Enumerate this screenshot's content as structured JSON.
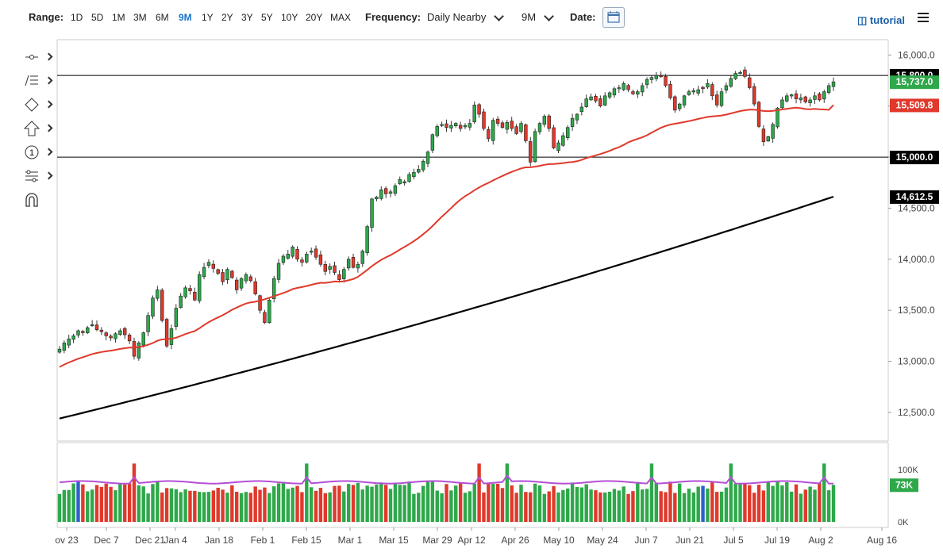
{
  "toolbar": {
    "range_label": "Range:",
    "ranges": [
      "1D",
      "5D",
      "1M",
      "3M",
      "6M",
      "9M",
      "1Y",
      "2Y",
      "3Y",
      "5Y",
      "10Y",
      "20Y",
      "MAX"
    ],
    "active_range": "9M",
    "frequency_label": "Frequency:",
    "frequency_value": "Daily Nearby",
    "period_value": "9M",
    "date_label": "Date:",
    "tutorial_label": "tutorial",
    "calendar_icon": "calendar-icon",
    "menu_icon": "hamburger-menu-icon"
  },
  "side_tools": [
    "line-tool-icon",
    "fib-tool-icon",
    "shape-tool-icon",
    "arrow-tool-icon",
    "number-tool-icon",
    "measure-tool-icon",
    "magnet-icon"
  ],
  "colors": {
    "up": "#2ea84a",
    "down": "#e0392b",
    "sma50": "#e0392b",
    "sma200": "#000000",
    "volume_avg": "#b44fd6",
    "volume_blue": "#2f5fd0"
  },
  "chart_data": {
    "type": "candlestick",
    "x_tick_labels": [
      "ov 23",
      "Dec 7",
      "Dec 21",
      "Jan 4",
      "Jan 18",
      "Feb 1",
      "Feb 15",
      "Mar 1",
      "Mar 15",
      "Mar 29",
      "Apr 12",
      "Apr 26",
      "May 10",
      "May 24",
      "Jun 7",
      "Jun 21",
      "Jul 5",
      "Jul 19",
      "Aug 2",
      "Aug 16"
    ],
    "y_tick_labels": [
      "16,000.0",
      "15,500.0",
      "15,000.0",
      "14,500.0",
      "14,000.0",
      "13,500.0",
      "13,000.0",
      "12,500.0"
    ],
    "y_ticks": [
      16000,
      15500,
      15000,
      14500,
      14000,
      13500,
      13000,
      12500
    ],
    "ylim": [
      12220,
      16150
    ],
    "horizontal_lines": [
      15800,
      15000
    ],
    "horizontal_line_labels": [
      "15,800.0",
      "15,000.0"
    ],
    "price_labels": {
      "last": "15,737.0",
      "sma50": "15,509.8",
      "sma200": "14,612.5"
    },
    "last_value": 15737,
    "sma50_value": 15509.8,
    "sma200_value": 14612.5,
    "close": [
      13120,
      13180,
      13220,
      13250,
      13300,
      13280,
      13330,
      13360,
      13310,
      13290,
      13250,
      13230,
      13270,
      13300,
      13260,
      13200,
      13050,
      13180,
      13280,
      13450,
      13620,
      13700,
      13400,
      13150,
      13320,
      13520,
      13640,
      13720,
      13690,
      13600,
      13850,
      13920,
      13970,
      13910,
      13860,
      13780,
      13900,
      13820,
      13700,
      13810,
      13850,
      13790,
      13660,
      13500,
      13380,
      13600,
      13810,
      13960,
      14030,
      14050,
      14120,
      14000,
      13970,
      14050,
      14080,
      14020,
      13950,
      13880,
      13930,
      13870,
      13800,
      13900,
      14000,
      13920,
      13950,
      14080,
      14320,
      14590,
      14610,
      14680,
      14640,
      14660,
      14720,
      14780,
      14760,
      14830,
      14850,
      14880,
      14960,
      15050,
      15220,
      15300,
      15320,
      15290,
      15310,
      15330,
      15280,
      15310,
      15330,
      15510,
      15420,
      15280,
      15180,
      15360,
      15330,
      15290,
      15340,
      15280,
      15230,
      15330,
      15160,
      14950,
      15250,
      15330,
      15400,
      15280,
      15090,
      15140,
      15210,
      15290,
      15380,
      15420,
      15490,
      15570,
      15590,
      15550,
      15500,
      15600,
      15630,
      15670,
      15680,
      15720,
      15660,
      15620,
      15640,
      15700,
      15760,
      15780,
      15800,
      15790,
      15700,
      15580,
      15460,
      15520,
      15600,
      15640,
      15650,
      15660,
      15670,
      15720,
      15600,
      15510,
      15640,
      15700,
      15770,
      15820,
      15830,
      15790,
      15680,
      15520,
      15300,
      15150,
      15200,
      15320,
      15480,
      15560,
      15600,
      15610,
      15570,
      15580,
      15540,
      15560,
      15600,
      15560,
      15640,
      15700,
      15737
    ],
    "sma50_start": 12730,
    "sma200_start": 12440,
    "volume": {
      "type": "bar",
      "y_tick_labels": [
        "100K",
        "0K"
      ],
      "ylim": [
        0,
        100000
      ],
      "last_value_label": "73K",
      "last_value": 73000
    }
  }
}
